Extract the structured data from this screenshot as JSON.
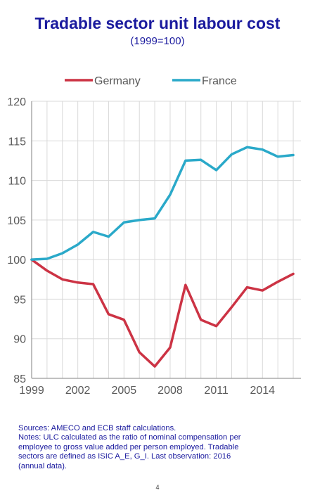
{
  "title": "Tradable sector unit labour cost",
  "subtitle": "(1999=100)",
  "colors": {
    "title": "#1a1a9e",
    "germany": "#cc3344",
    "france": "#2aa9c9",
    "grid": "#d9d9d9",
    "axis_text": "#595959"
  },
  "notes": [
    "Sources: AMECO and ECB staff calculations.",
    "Notes: ULC calculated as the ratio of nominal compensation per",
    "employee to gross value added per person employed.  Tradable",
    "sectors are defined as ISIC A_E, G_I. Last observation: 2016",
    "(annual data)."
  ],
  "page_number": "4",
  "chart_data": {
    "type": "line",
    "x": [
      1999,
      2000,
      2001,
      2002,
      2003,
      2004,
      2005,
      2006,
      2007,
      2008,
      2009,
      2010,
      2011,
      2012,
      2013,
      2014,
      2015,
      2016
    ],
    "xticks": [
      1999,
      2002,
      2005,
      2008,
      2011,
      2014
    ],
    "xlim": [
      1999,
      2016.5
    ],
    "ylim": [
      85,
      120
    ],
    "yticks": [
      85,
      90,
      95,
      100,
      105,
      110,
      115,
      120
    ],
    "grid": true,
    "legend_position": "top",
    "series": [
      {
        "name": "Germany",
        "color": "#cc3344",
        "values": [
          100.0,
          98.6,
          97.5,
          97.1,
          96.9,
          93.1,
          92.4,
          88.3,
          86.5,
          88.9,
          96.8,
          92.4,
          91.6,
          94.0,
          96.5,
          96.1,
          97.2,
          98.2
        ]
      },
      {
        "name": "France",
        "color": "#2aa9c9",
        "values": [
          100.0,
          100.1,
          100.8,
          101.9,
          103.5,
          102.9,
          104.7,
          105.0,
          105.2,
          108.2,
          112.5,
          112.6,
          111.3,
          113.3,
          114.2,
          113.9,
          113.0,
          113.2
        ]
      }
    ]
  }
}
